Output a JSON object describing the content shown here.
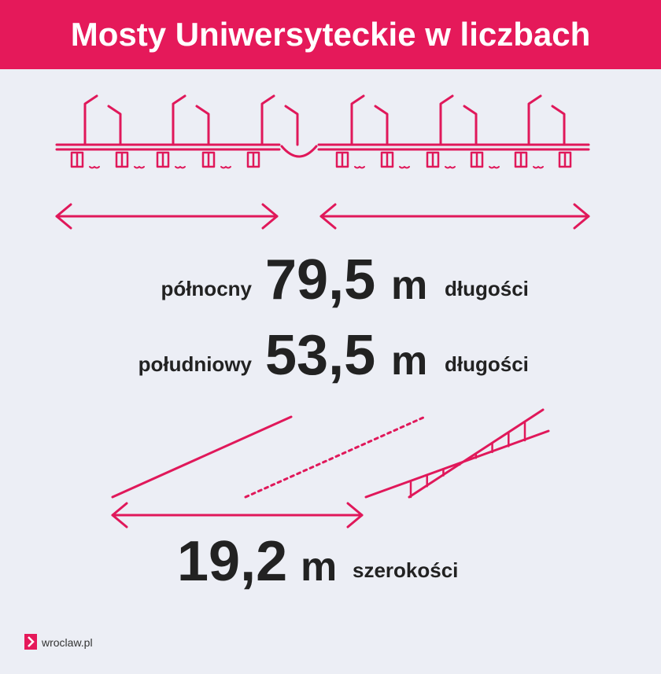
{
  "header": {
    "title": "Mosty Uniwersyteckie w liczbach"
  },
  "lengths": [
    {
      "label": "północny",
      "value": "79,5",
      "unit": "m",
      "suffix": "długości"
    },
    {
      "label": "południowy",
      "value": "53,5",
      "unit": "m",
      "suffix": "długości"
    }
  ],
  "width": {
    "value": "19,2",
    "unit": "m",
    "suffix": "szerokości"
  },
  "footer": {
    "logo": "wroclaw.pl"
  }
}
